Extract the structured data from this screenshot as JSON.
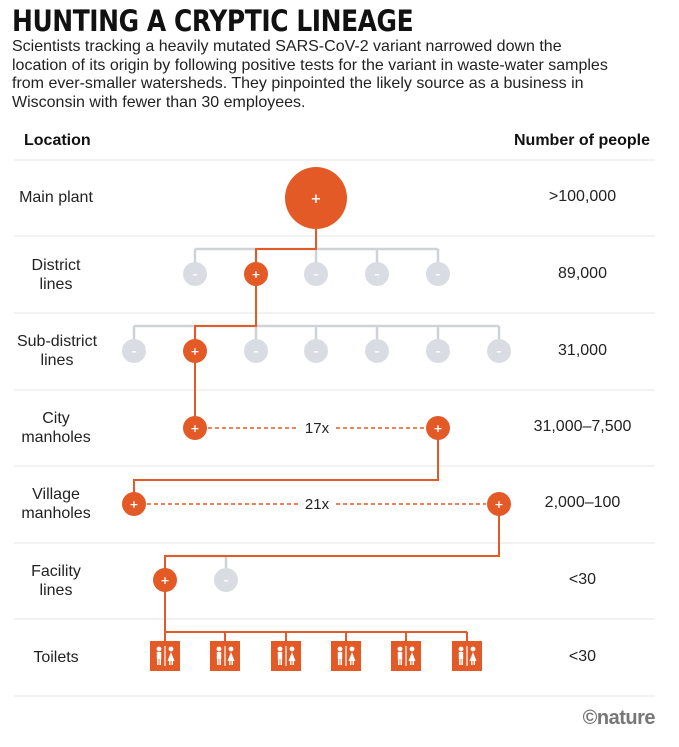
{
  "title": "HUNTING A CRYPTIC LINEAGE",
  "subtitle": "Scientists tracking a heavily mutated SARS-CoV-2 variant narrowed down the location of its origin by following positive tests for the variant in waste-water samples from ever-smaller watersheds. They pinpointed the likely source as a business in Wisconsin with fewer than 30 employees.",
  "headers": {
    "location": "Location",
    "people": "Number of people"
  },
  "rows": [
    {
      "location": "Main plant",
      "people": ">100,000"
    },
    {
      "location": "District lines",
      "people": "89,000"
    },
    {
      "location": "Sub-district lines",
      "people": "31,000"
    },
    {
      "location": "City manholes",
      "people": "31,000–7,500"
    },
    {
      "location": "Village manholes",
      "people": "2,000–100"
    },
    {
      "location": "Facility lines",
      "people": "<30"
    },
    {
      "location": "Toilets",
      "people": "<30"
    }
  ],
  "symbols": {
    "positive": "+",
    "negative": "–"
  },
  "multipliers": {
    "city": "17x",
    "village": "21x"
  },
  "credit": "©nature",
  "colors": {
    "positive": "#e35a27",
    "negative": "#d9dde3",
    "connector": "#cfd3d8",
    "path": "#e35a27",
    "rule": "#e4e4e4"
  },
  "icons": {
    "toilet": "restroom-icon"
  }
}
